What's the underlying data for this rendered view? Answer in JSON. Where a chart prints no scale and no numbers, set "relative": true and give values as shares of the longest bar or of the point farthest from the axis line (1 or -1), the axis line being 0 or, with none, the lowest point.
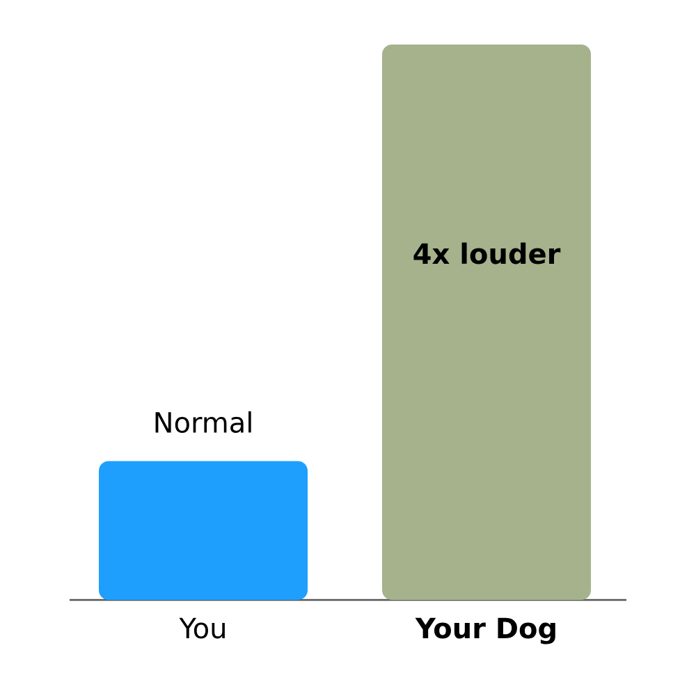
{
  "chart_data": {
    "type": "bar",
    "categories": [
      "You",
      "Your Dog"
    ],
    "values": [
      0.25,
      1
    ],
    "colors": [
      "#1e9ffe",
      "#a5b28c"
    ],
    "relative": true,
    "annotations": [
      {
        "text": "Normal",
        "x": "You",
        "y": 0.25
      },
      "4x louder"
    ]
  }
}
